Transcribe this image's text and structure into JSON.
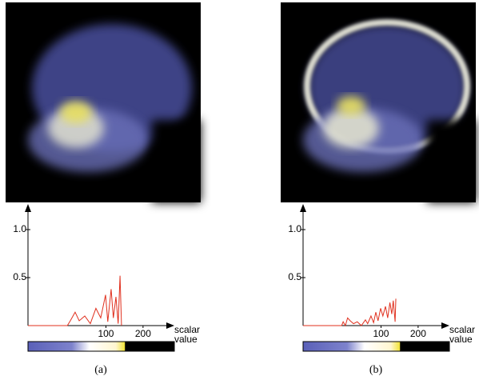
{
  "chart_data": [
    {
      "type": "line",
      "caption": "(a)",
      "xlabel": [
        "scalar",
        "value"
      ],
      "xlim": [
        -110,
        280
      ],
      "ylim": [
        0,
        1.25
      ],
      "xticks": [
        100,
        200
      ],
      "yticks": [
        {
          "value": 1,
          "label": "1.0"
        },
        0.5
      ],
      "color": "#e0301e",
      "x": [
        -110,
        -4,
        4,
        17,
        28,
        43,
        58,
        73,
        86,
        99,
        105,
        114,
        120,
        127,
        133,
        138,
        142
      ],
      "values": [
        0,
        0,
        0.05,
        0.14,
        0.05,
        0.1,
        0.02,
        0.18,
        0.08,
        0.32,
        0.04,
        0.38,
        0.08,
        0.3,
        0.02,
        0.52,
        0
      ]
    },
    {
      "type": "line",
      "caption": "(b)",
      "xlabel": [
        "scalar",
        "value"
      ],
      "xlim": [
        -110,
        280
      ],
      "ylim": [
        0,
        1.25
      ],
      "xticks": [
        100,
        200
      ],
      "yticks": [
        {
          "value": 1,
          "label": "1.0"
        },
        0.5
      ],
      "color": "#e0301e",
      "x": [
        -110,
        -6,
        -2,
        4,
        10,
        17,
        26,
        36,
        47,
        58,
        64,
        73,
        80,
        86,
        92,
        99,
        105,
        112,
        118,
        124,
        129,
        133,
        138,
        140
      ],
      "values": [
        0,
        0,
        0.04,
        0,
        0.08,
        0.05,
        0.02,
        0.04,
        0,
        0.06,
        0.02,
        0.1,
        0.03,
        0.14,
        0.05,
        0.18,
        0.1,
        0.2,
        0.08,
        0.24,
        0.12,
        0.26,
        0.04,
        0.28
      ]
    }
  ]
}
